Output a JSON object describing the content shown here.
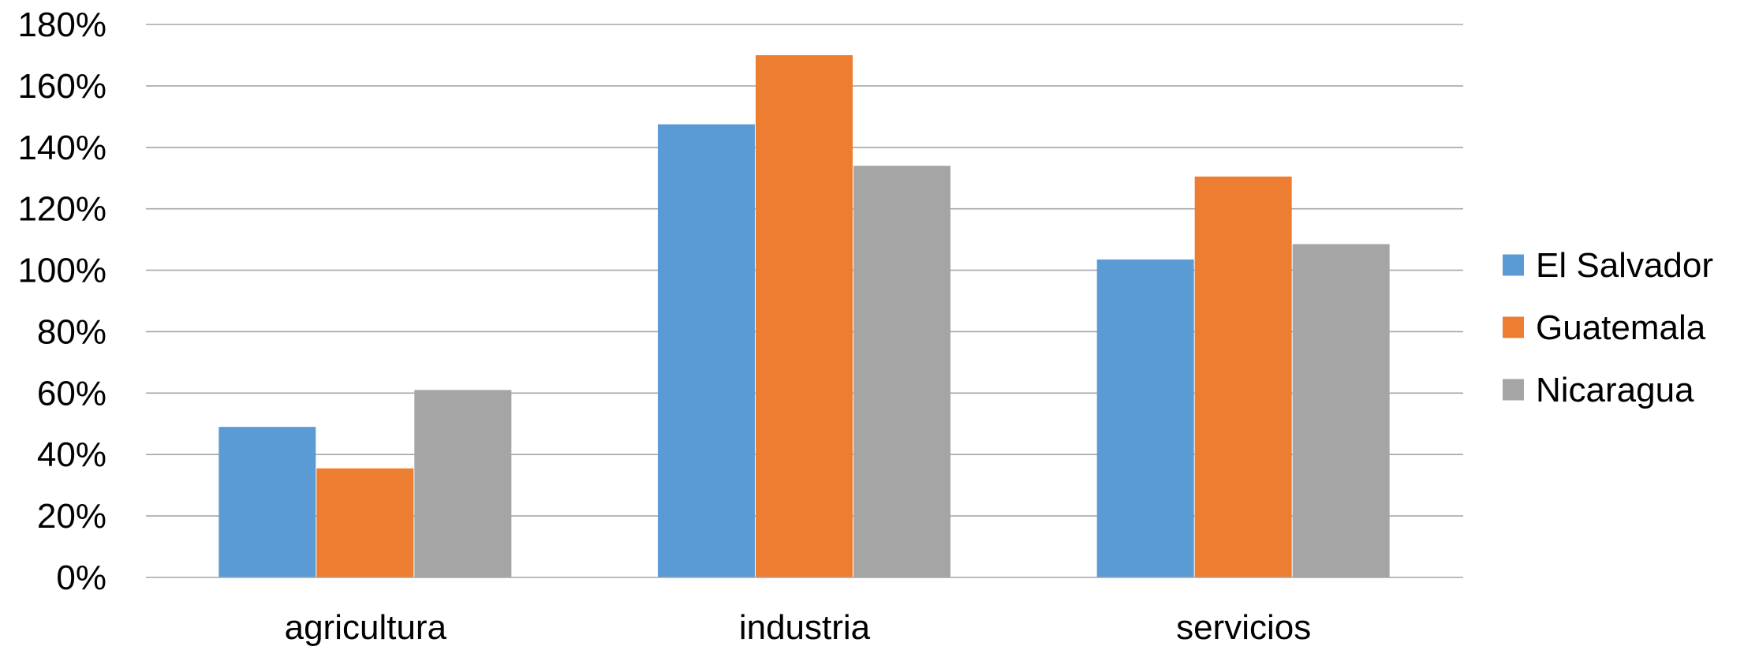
{
  "chart_data": {
    "type": "bar",
    "categories": [
      "agricultura",
      "industria",
      "servicios"
    ],
    "series": [
      {
        "name": "El Salvador",
        "color": "#5b9bd5",
        "values": [
          49,
          147.5,
          103.5
        ]
      },
      {
        "name": "Guatemala",
        "color": "#ed7d31",
        "values": [
          35.5,
          170,
          130.5
        ]
      },
      {
        "name": "Nicaragua",
        "color": "#a5a5a5",
        "values": [
          61,
          134,
          108.5
        ]
      }
    ],
    "y_ticks": [
      "0%",
      "20%",
      "40%",
      "60%",
      "80%",
      "100%",
      "120%",
      "140%",
      "160%",
      "180%"
    ],
    "ylim": [
      0,
      180
    ],
    "y_unit": "%",
    "grid": true,
    "legend_position": "right",
    "title": "",
    "xlabel": "",
    "ylabel": ""
  }
}
